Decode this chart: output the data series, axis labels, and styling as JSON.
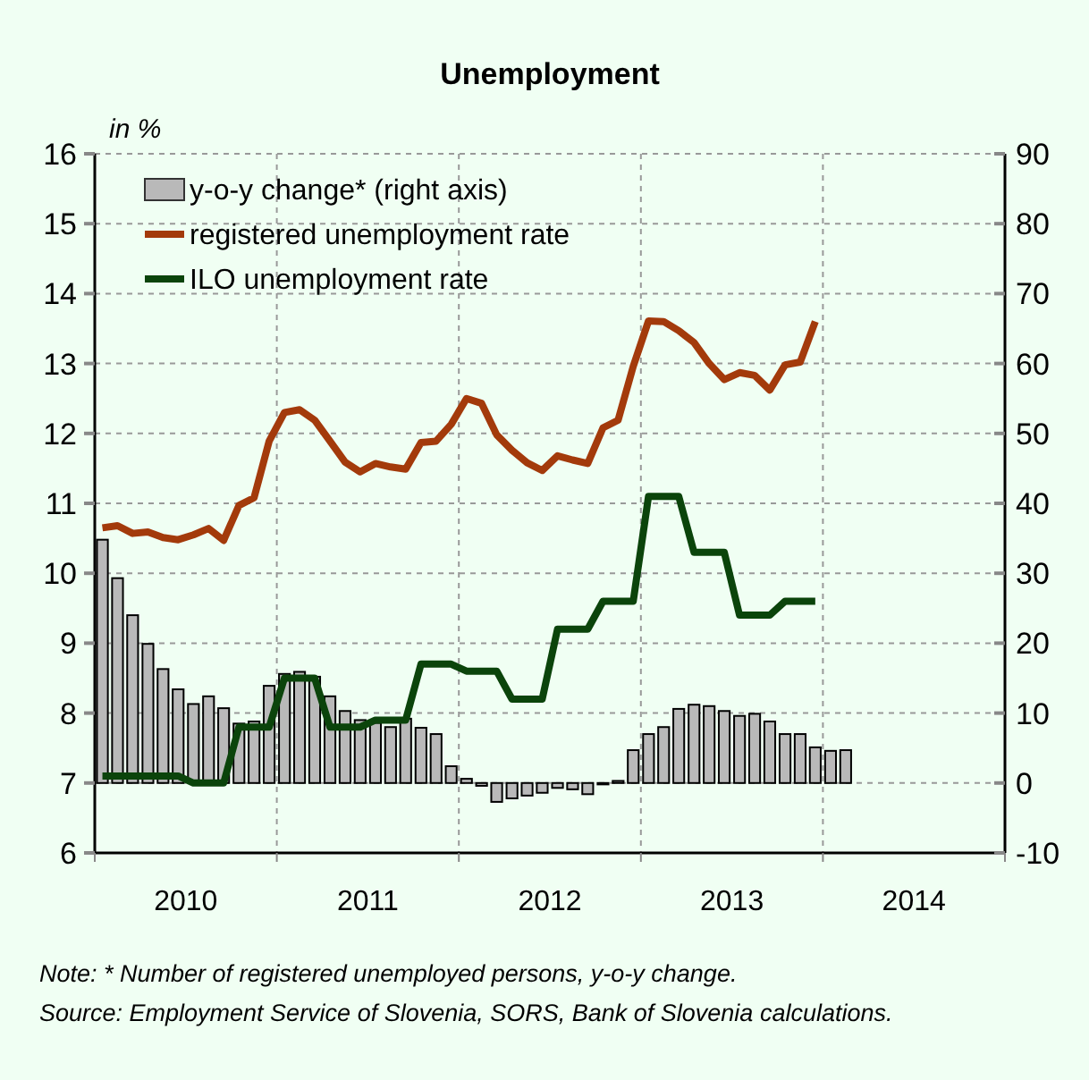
{
  "chart_data": {
    "type": "line",
    "title": "Unemployment",
    "ylabel": "in %",
    "x": [
      2010.042,
      2010.125,
      2010.208,
      2010.292,
      2010.375,
      2010.458,
      2010.542,
      2010.625,
      2010.708,
      2010.792,
      2010.875,
      2010.958,
      2011.042,
      2011.125,
      2011.208,
      2011.292,
      2011.375,
      2011.458,
      2011.542,
      2011.625,
      2011.708,
      2011.792,
      2011.875,
      2011.958,
      2012.042,
      2012.125,
      2012.208,
      2012.292,
      2012.375,
      2012.458,
      2012.542,
      2012.625,
      2012.708,
      2012.792,
      2012.875,
      2012.958,
      2013.042,
      2013.125,
      2013.208,
      2013.292,
      2013.375,
      2013.458,
      2013.542,
      2013.625,
      2013.708,
      2013.792,
      2013.875,
      2013.958,
      2014.042,
      2014.125
    ],
    "series": [
      {
        "name": "y-o-y change* (right axis)",
        "type": "bar",
        "axis": "y2",
        "color": "#b9b9b9",
        "values": [
          34.8,
          29.3,
          24.0,
          19.9,
          16.3,
          13.4,
          11.3,
          12.4,
          10.7,
          8.5,
          8.8,
          13.9,
          15.6,
          15.9,
          15.2,
          12.4,
          10.3,
          9.0,
          8.6,
          8.0,
          9.2,
          7.9,
          7.0,
          2.4,
          0.6,
          -0.4,
          -2.7,
          -2.2,
          -1.8,
          -1.4,
          -0.7,
          -0.9,
          -1.6,
          -0.2,
          0.3,
          4.7,
          7.0,
          8.0,
          10.6,
          11.2,
          11.0,
          10.3,
          9.6,
          9.9,
          8.8,
          7.0,
          7.0,
          5.1,
          4.6,
          4.7
        ]
      },
      {
        "name": "registered unemployment rate",
        "color": "#a33a0b",
        "values": [
          10.65,
          10.68,
          10.57,
          10.59,
          10.51,
          10.48,
          10.55,
          10.64,
          10.47,
          10.97,
          11.08,
          11.89,
          12.3,
          12.34,
          12.19,
          11.89,
          11.59,
          11.45,
          11.57,
          11.52,
          11.49,
          11.87,
          11.89,
          12.13,
          12.5,
          12.43,
          11.98,
          11.76,
          11.58,
          11.47,
          11.68,
          11.62,
          11.57,
          12.08,
          12.19,
          12.96,
          13.61,
          13.6,
          13.47,
          13.3,
          13.0,
          12.77,
          12.87,
          12.83,
          12.62,
          12.98,
          13.02,
          13.6,
          null,
          null
        ]
      },
      {
        "name": "ILO unemployment rate",
        "color": "#0b440b",
        "values": [
          7.1,
          7.1,
          7.1,
          7.1,
          7.1,
          7.1,
          7.0,
          7.0,
          7.0,
          7.8,
          7.8,
          7.8,
          8.5,
          8.5,
          8.5,
          7.8,
          7.8,
          7.8,
          7.9,
          7.9,
          7.9,
          8.7,
          8.7,
          8.7,
          8.6,
          8.6,
          8.6,
          8.2,
          8.2,
          8.2,
          9.2,
          9.2,
          9.2,
          9.6,
          9.6,
          9.6,
          11.1,
          11.1,
          11.1,
          10.3,
          10.3,
          10.3,
          9.4,
          9.4,
          9.4,
          9.6,
          9.6,
          9.6,
          null,
          null
        ]
      }
    ],
    "xlim": [
      2010,
      2015
    ],
    "xticks": [
      {
        "value": 2010,
        "label": null
      },
      {
        "value": 2011,
        "label": null
      },
      {
        "value": 2012,
        "label": null
      },
      {
        "value": 2013,
        "label": null
      },
      {
        "value": 2014,
        "label": null
      },
      {
        "value": 2015,
        "label": null
      },
      {
        "value": 2010.5,
        "label": "2010"
      },
      {
        "value": 2011.5,
        "label": "2011"
      },
      {
        "value": 2012.5,
        "label": "2012"
      },
      {
        "value": 2013.5,
        "label": "2013"
      },
      {
        "value": 2014.5,
        "label": "2014"
      }
    ],
    "ylim": [
      6,
      16
    ],
    "yticks": [
      6,
      7,
      8,
      9,
      10,
      11,
      12,
      13,
      14,
      15,
      16
    ],
    "y2lim": [
      -10,
      90
    ],
    "y2ticks": [
      -10,
      0,
      10,
      20,
      30,
      40,
      50,
      60,
      70,
      80,
      90
    ],
    "grid": true,
    "legend": "top left",
    "annotations": [
      "Note: * Number of registered unemployed persons, y-o-y change.",
      "Source: Employment Service of Slovenia, SORS, Bank of Slovenia calculations."
    ]
  }
}
